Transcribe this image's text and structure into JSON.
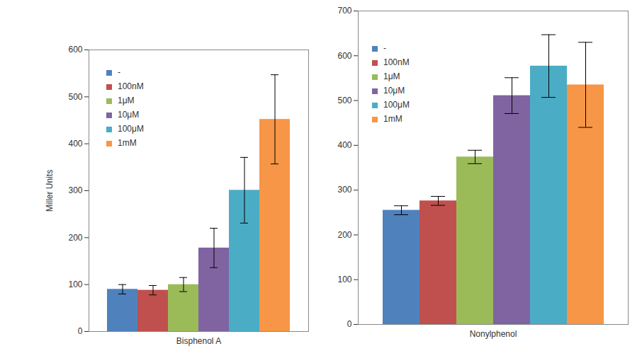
{
  "chart_data": [
    {
      "type": "bar",
      "y_label": "Miller Units",
      "categories": [
        "Bisphenol A"
      ],
      "ylim": [
        0,
        600
      ],
      "yticks": [
        0,
        100,
        200,
        300,
        400,
        500,
        600
      ],
      "legend": "top-left",
      "series": [
        {
          "name": "-",
          "color": "#4F81BD",
          "values": [
            90
          ],
          "errors": [
            10
          ]
        },
        {
          "name": "100nM",
          "color": "#C0504D",
          "values": [
            88
          ],
          "errors": [
            10
          ]
        },
        {
          "name": "1μM",
          "color": "#9BBB59",
          "values": [
            100
          ],
          "errors": [
            15
          ]
        },
        {
          "name": "10μM",
          "color": "#8064A2",
          "values": [
            178
          ],
          "errors": [
            42
          ]
        },
        {
          "name": "100μM",
          "color": "#4BACC6",
          "values": [
            301
          ],
          "errors": [
            70
          ]
        },
        {
          "name": "1mM",
          "color": "#F79646",
          "values": [
            452
          ],
          "errors": [
            95
          ]
        }
      ]
    },
    {
      "type": "bar",
      "categories": [
        "Nonylphenol"
      ],
      "ylim": [
        0,
        700
      ],
      "yticks": [
        0,
        100,
        200,
        300,
        400,
        500,
        600,
        700
      ],
      "legend": "top-left",
      "series": [
        {
          "name": "-",
          "color": "#4F81BD",
          "values": [
            255
          ],
          "errors": [
            10
          ]
        },
        {
          "name": "100nM",
          "color": "#C0504D",
          "values": [
            276
          ],
          "errors": [
            10
          ]
        },
        {
          "name": "1μM",
          "color": "#9BBB59",
          "values": [
            374
          ],
          "errors": [
            15
          ]
        },
        {
          "name": "10μM",
          "color": "#8064A2",
          "values": [
            511
          ],
          "errors": [
            40
          ]
        },
        {
          "name": "100μM",
          "color": "#4BACC6",
          "values": [
            577
          ],
          "errors": [
            70
          ]
        },
        {
          "name": "1mM",
          "color": "#F79646",
          "values": [
            535
          ],
          "errors": [
            95
          ]
        }
      ]
    }
  ]
}
